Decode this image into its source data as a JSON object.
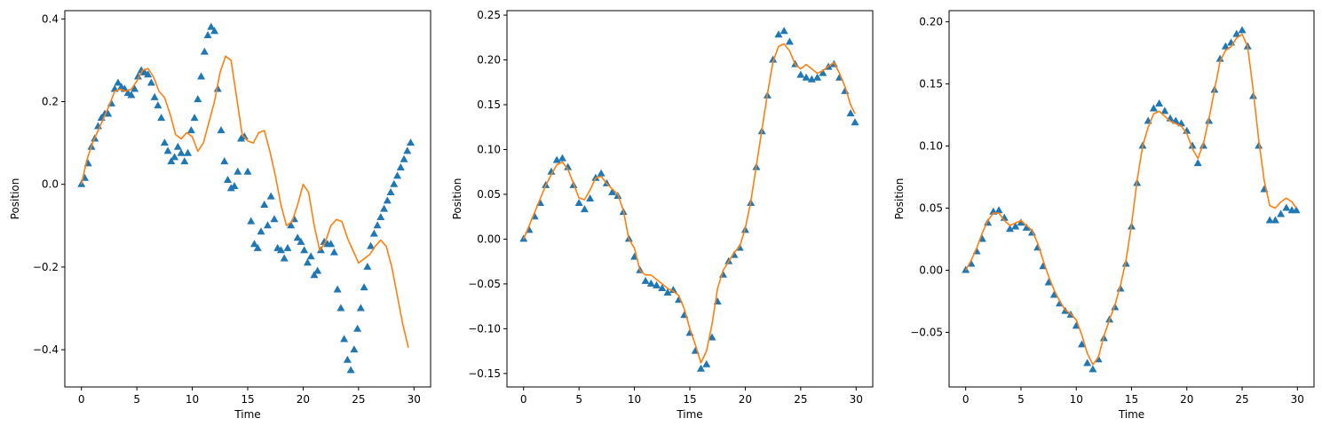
{
  "chart_data": [
    {
      "type": "line+scatter",
      "xlabel": "Time",
      "ylabel": "Position",
      "xlim": [
        -1.5,
        31.5
      ],
      "ylim": [
        -0.49,
        0.42
      ],
      "xticks": [
        0,
        5,
        10,
        15,
        20,
        25,
        30
      ],
      "xtick_labels": [
        "0",
        "5",
        "10",
        "15",
        "20",
        "25",
        "30"
      ],
      "yticks": [
        -0.4,
        -0.2,
        0.0,
        0.2,
        0.4
      ],
      "ytick_labels": [
        "−0.4",
        "−0.2",
        "0.0",
        "0.2",
        "0.4"
      ],
      "grid": false,
      "series": [
        {
          "kind": "scatter",
          "marker": "triangle-up",
          "color": "#1f77b4",
          "x": [
            0,
            0.3,
            0.6,
            0.9,
            1.2,
            1.5,
            1.8,
            2.1,
            2.4,
            2.7,
            3.0,
            3.3,
            3.6,
            3.9,
            4.2,
            4.5,
            4.8,
            5.1,
            5.4,
            5.7,
            6.0,
            6.3,
            6.6,
            6.9,
            7.2,
            7.5,
            7.8,
            8.1,
            8.4,
            8.7,
            9.0,
            9.3,
            9.6,
            9.9,
            10.2,
            10.5,
            10.8,
            11.1,
            11.4,
            11.7,
            12.0,
            12.3,
            12.6,
            12.9,
            13.2,
            13.5,
            13.8,
            14.1,
            14.4,
            14.7,
            15.0,
            15.3,
            15.6,
            15.9,
            16.2,
            16.5,
            16.8,
            17.1,
            17.4,
            17.7,
            18.0,
            18.3,
            18.6,
            18.9,
            19.2,
            19.5,
            19.8,
            20.1,
            20.4,
            20.7,
            21.0,
            21.3,
            21.6,
            21.9,
            22.2,
            22.5,
            22.8,
            23.1,
            23.4,
            23.7,
            24.0,
            24.3,
            24.6,
            24.9,
            25.2,
            25.5,
            25.8,
            26.1,
            26.4,
            26.7,
            27.0,
            27.3,
            27.6,
            27.9,
            28.2,
            28.5,
            28.8,
            29.1,
            29.4,
            29.7
          ],
          "y": [
            0.0,
            0.015,
            0.05,
            0.09,
            0.11,
            0.14,
            0.16,
            0.17,
            0.17,
            0.195,
            0.23,
            0.245,
            0.235,
            0.23,
            0.22,
            0.215,
            0.23,
            0.26,
            0.275,
            0.27,
            0.265,
            0.245,
            0.21,
            0.19,
            0.16,
            0.1,
            0.08,
            0.055,
            0.065,
            0.09,
            0.075,
            0.055,
            0.075,
            0.13,
            0.16,
            0.205,
            0.26,
            0.32,
            0.36,
            0.38,
            0.37,
            0.23,
            0.13,
            0.055,
            0.01,
            -0.01,
            -0.005,
            0.03,
            0.11,
            0.115,
            0.03,
            -0.09,
            -0.145,
            -0.155,
            -0.115,
            -0.05,
            -0.1,
            -0.03,
            -0.085,
            -0.155,
            -0.16,
            -0.18,
            -0.155,
            -0.1,
            -0.085,
            -0.13,
            -0.14,
            -0.16,
            -0.19,
            -0.175,
            -0.22,
            -0.21,
            -0.16,
            -0.14,
            -0.145,
            -0.145,
            -0.165,
            -0.255,
            -0.3,
            -0.375,
            -0.425,
            -0.45,
            -0.4,
            -0.35,
            -0.3,
            -0.25,
            -0.2,
            -0.15,
            -0.12,
            -0.1,
            -0.08,
            -0.06,
            -0.04,
            -0.02,
            0.0,
            0.02,
            0.04,
            0.06,
            0.08,
            0.1
          ]
        },
        {
          "kind": "line",
          "color": "#ff7f0e",
          "x": [
            0,
            0.5,
            1.0,
            1.5,
            2.0,
            2.5,
            3.0,
            3.5,
            4.0,
            4.5,
            5.0,
            5.5,
            6.0,
            6.5,
            7.0,
            7.5,
            8.0,
            8.5,
            9.0,
            9.5,
            10.0,
            10.5,
            11.0,
            11.5,
            12.0,
            12.5,
            13.0,
            13.5,
            14.0,
            14.5,
            15.0,
            15.5,
            16.0,
            16.5,
            17.0,
            17.5,
            18.0,
            18.5,
            19.0,
            19.5,
            20.0,
            20.5,
            21.0,
            21.5,
            22.0,
            22.5,
            23.0,
            23.5,
            24.0,
            24.5,
            25.0,
            25.5,
            26.0,
            26.5,
            27.0,
            27.5,
            28.0,
            28.5,
            29.0,
            29.5
          ],
          "y": [
            0.0,
            0.06,
            0.1,
            0.13,
            0.16,
            0.19,
            0.225,
            0.23,
            0.225,
            0.23,
            0.25,
            0.275,
            0.28,
            0.26,
            0.225,
            0.21,
            0.17,
            0.12,
            0.11,
            0.125,
            0.115,
            0.08,
            0.1,
            0.15,
            0.2,
            0.27,
            0.31,
            0.3,
            0.21,
            0.12,
            0.105,
            0.1,
            0.125,
            0.13,
            0.08,
            0.02,
            -0.05,
            -0.1,
            -0.09,
            -0.05,
            0.0,
            -0.02,
            -0.1,
            -0.16,
            -0.14,
            -0.1,
            -0.085,
            -0.09,
            -0.13,
            -0.16,
            -0.19,
            -0.18,
            -0.17,
            -0.15,
            -0.135,
            -0.15,
            -0.2,
            -0.27,
            -0.34,
            -0.395
          ]
        }
      ]
    },
    {
      "type": "line+scatter",
      "xlabel": "Time",
      "ylabel": "Position",
      "xlim": [
        -1.5,
        31.5
      ],
      "ylim": [
        -0.165,
        0.255
      ],
      "xticks": [
        0,
        5,
        10,
        15,
        20,
        25,
        30
      ],
      "xtick_labels": [
        "0",
        "5",
        "10",
        "15",
        "20",
        "25",
        "30"
      ],
      "yticks": [
        -0.15,
        -0.1,
        -0.05,
        0.0,
        0.05,
        0.1,
        0.15,
        0.2,
        0.25
      ],
      "ytick_labels": [
        "−0.15",
        "−0.10",
        "−0.05",
        "0.00",
        "0.05",
        "0.10",
        "0.15",
        "0.20",
        "0.25"
      ],
      "grid": false,
      "series": [
        {
          "kind": "scatter",
          "marker": "triangle-up",
          "color": "#1f77b4",
          "x": [
            0,
            0.5,
            1.0,
            1.5,
            2.0,
            2.5,
            3.0,
            3.5,
            4.0,
            4.5,
            5.0,
            5.5,
            6.0,
            6.5,
            7.0,
            7.5,
            8.0,
            8.5,
            9.0,
            9.5,
            10.0,
            10.5,
            11.0,
            11.5,
            12.0,
            12.5,
            13.0,
            13.5,
            14.0,
            14.5,
            15.0,
            15.5,
            16.0,
            16.5,
            17.0,
            17.5,
            18.0,
            18.5,
            19.0,
            19.5,
            20.0,
            20.5,
            21.0,
            21.5,
            22.0,
            22.5,
            23.0,
            23.5,
            24.0,
            24.5,
            25.0,
            25.5,
            26.0,
            26.5,
            27.0,
            27.5,
            28.0,
            28.5,
            29.0,
            29.5,
            29.9
          ],
          "y": [
            0.0,
            0.01,
            0.025,
            0.04,
            0.06,
            0.075,
            0.088,
            0.09,
            0.08,
            0.06,
            0.04,
            0.033,
            0.045,
            0.068,
            0.073,
            0.062,
            0.052,
            0.048,
            0.03,
            0.0,
            -0.02,
            -0.035,
            -0.047,
            -0.05,
            -0.052,
            -0.055,
            -0.06,
            -0.057,
            -0.068,
            -0.085,
            -0.105,
            -0.125,
            -0.145,
            -0.14,
            -0.11,
            -0.07,
            -0.04,
            -0.025,
            -0.018,
            -0.01,
            0.01,
            0.04,
            0.08,
            0.12,
            0.16,
            0.2,
            0.228,
            0.232,
            0.22,
            0.195,
            0.183,
            0.18,
            0.178,
            0.18,
            0.185,
            0.192,
            0.195,
            0.18,
            0.165,
            0.14,
            0.13
          ]
        },
        {
          "kind": "line",
          "color": "#ff7f0e",
          "x": [
            0,
            0.5,
            1.0,
            1.5,
            2.0,
            2.5,
            3.0,
            3.5,
            4.0,
            4.5,
            5.0,
            5.5,
            6.0,
            6.5,
            7.0,
            7.5,
            8.0,
            8.5,
            9.0,
            9.5,
            10.0,
            10.5,
            11.0,
            11.5,
            12.0,
            12.5,
            13.0,
            13.5,
            14.0,
            14.5,
            15.0,
            15.5,
            16.0,
            16.5,
            17.0,
            17.5,
            18.0,
            18.5,
            19.0,
            19.5,
            20.0,
            20.5,
            21.0,
            21.5,
            22.0,
            22.5,
            23.0,
            23.5,
            24.0,
            24.5,
            25.0,
            25.5,
            26.0,
            26.5,
            27.0,
            27.5,
            28.0,
            28.5,
            29.0,
            29.5,
            29.9
          ],
          "y": [
            0.0,
            0.015,
            0.03,
            0.045,
            0.06,
            0.072,
            0.083,
            0.086,
            0.078,
            0.062,
            0.046,
            0.044,
            0.055,
            0.068,
            0.07,
            0.062,
            0.056,
            0.05,
            0.032,
            0.0,
            -0.01,
            -0.035,
            -0.04,
            -0.04,
            -0.045,
            -0.05,
            -0.055,
            -0.058,
            -0.063,
            -0.078,
            -0.1,
            -0.118,
            -0.138,
            -0.125,
            -0.095,
            -0.055,
            -0.035,
            -0.025,
            -0.015,
            -0.008,
            0.012,
            0.042,
            0.082,
            0.122,
            0.162,
            0.198,
            0.215,
            0.218,
            0.21,
            0.195,
            0.19,
            0.195,
            0.19,
            0.185,
            0.188,
            0.193,
            0.197,
            0.185,
            0.17,
            0.15,
            0.14
          ]
        }
      ]
    },
    {
      "type": "line+scatter",
      "xlabel": "Time",
      "ylabel": "Position",
      "xlim": [
        -1.5,
        31.5
      ],
      "ylim": [
        -0.094,
        0.209
      ],
      "xticks": [
        0,
        5,
        10,
        15,
        20,
        25,
        30
      ],
      "xtick_labels": [
        "0",
        "5",
        "10",
        "15",
        "20",
        "25",
        "30"
      ],
      "yticks": [
        -0.05,
        0.0,
        0.05,
        0.1,
        0.15,
        0.2
      ],
      "ytick_labels": [
        "−0.05",
        "0.00",
        "0.05",
        "0.10",
        "0.15",
        "0.20"
      ],
      "grid": false,
      "series": [
        {
          "kind": "scatter",
          "marker": "triangle-up",
          "color": "#1f77b4",
          "x": [
            0,
            0.5,
            1.0,
            1.5,
            2.0,
            2.5,
            3.0,
            3.5,
            4.0,
            4.5,
            5.0,
            5.5,
            6.0,
            6.5,
            7.0,
            7.5,
            8.0,
            8.5,
            9.0,
            9.5,
            10.0,
            10.5,
            11.0,
            11.5,
            12.0,
            12.5,
            13.0,
            13.5,
            14.0,
            14.5,
            15.0,
            15.5,
            16.0,
            16.5,
            17.0,
            17.5,
            18.0,
            18.5,
            19.0,
            19.5,
            20.0,
            20.5,
            21.0,
            21.5,
            22.0,
            22.5,
            23.0,
            23.5,
            24.0,
            24.5,
            25.0,
            25.5,
            26.0,
            26.5,
            27.0,
            27.5,
            28.0,
            28.5,
            29.0,
            29.5,
            29.9
          ],
          "y": [
            0.0,
            0.005,
            0.015,
            0.025,
            0.038,
            0.047,
            0.048,
            0.042,
            0.033,
            0.035,
            0.038,
            0.034,
            0.03,
            0.018,
            0.003,
            -0.01,
            -0.02,
            -0.027,
            -0.033,
            -0.036,
            -0.045,
            -0.06,
            -0.075,
            -0.08,
            -0.072,
            -0.055,
            -0.04,
            -0.03,
            -0.015,
            0.005,
            0.035,
            0.07,
            0.1,
            0.12,
            0.13,
            0.134,
            0.128,
            0.122,
            0.12,
            0.118,
            0.112,
            0.1,
            0.086,
            0.1,
            0.12,
            0.145,
            0.17,
            0.18,
            0.183,
            0.19,
            0.193,
            0.18,
            0.14,
            0.1,
            0.065,
            0.04,
            0.04,
            0.045,
            0.05,
            0.048,
            0.048
          ]
        },
        {
          "kind": "line",
          "color": "#ff7f0e",
          "x": [
            0,
            0.5,
            1.0,
            1.5,
            2.0,
            2.5,
            3.0,
            3.5,
            4.0,
            4.5,
            5.0,
            5.5,
            6.0,
            6.5,
            7.0,
            7.5,
            8.0,
            8.5,
            9.0,
            9.5,
            10.0,
            10.5,
            11.0,
            11.5,
            12.0,
            12.5,
            13.0,
            13.5,
            14.0,
            14.5,
            15.0,
            15.5,
            16.0,
            16.5,
            17.0,
            17.5,
            18.0,
            18.5,
            19.0,
            19.5,
            20.0,
            20.5,
            21.0,
            21.5,
            22.0,
            22.5,
            23.0,
            23.5,
            24.0,
            24.5,
            25.0,
            25.5,
            26.0,
            26.5,
            27.0,
            27.5,
            28.0,
            28.5,
            29.0,
            29.5,
            29.9
          ],
          "y": [
            0.0,
            0.008,
            0.018,
            0.03,
            0.04,
            0.046,
            0.046,
            0.04,
            0.036,
            0.038,
            0.04,
            0.036,
            0.032,
            0.022,
            0.008,
            -0.005,
            -0.016,
            -0.025,
            -0.032,
            -0.035,
            -0.04,
            -0.052,
            -0.067,
            -0.076,
            -0.07,
            -0.053,
            -0.04,
            -0.028,
            -0.012,
            0.008,
            0.037,
            0.072,
            0.1,
            0.115,
            0.126,
            0.128,
            0.124,
            0.12,
            0.118,
            0.116,
            0.11,
            0.098,
            0.09,
            0.102,
            0.122,
            0.145,
            0.168,
            0.177,
            0.18,
            0.187,
            0.19,
            0.18,
            0.145,
            0.105,
            0.072,
            0.052,
            0.05,
            0.055,
            0.058,
            0.055,
            0.05
          ]
        }
      ]
    }
  ]
}
